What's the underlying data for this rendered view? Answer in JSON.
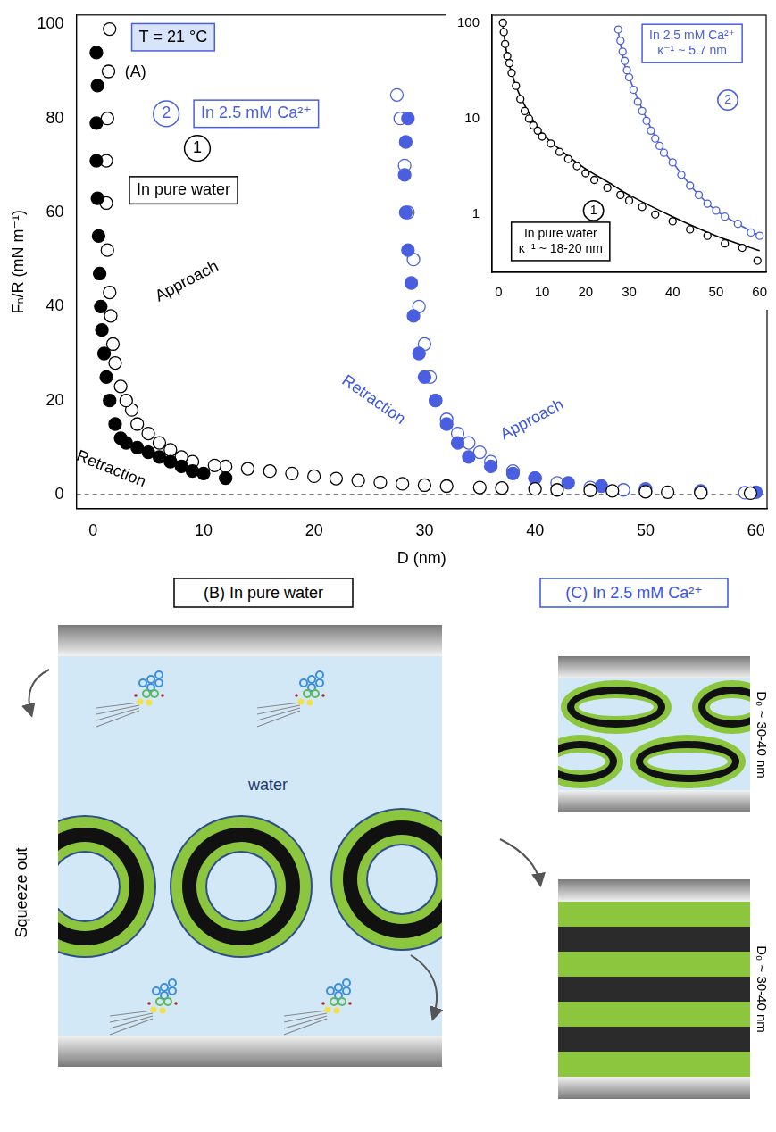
{
  "chart_data": [
    {
      "type": "scatter",
      "title": "(A)",
      "x_label": "D (nm)",
      "y_label": "Fₙ/R (mN m⁻¹)",
      "xlim": [
        -1.5,
        61
      ],
      "xticks": [
        0,
        10,
        20,
        30,
        40,
        50,
        60
      ],
      "ylim": [
        -3,
        102
      ],
      "yticks": [
        0,
        20,
        40,
        60,
        80,
        100
      ],
      "grid": false,
      "series": [
        {
          "color": "#000000",
          "marker": "filled_circle",
          "x": [
            0.3,
            0.4,
            0.3,
            0.3,
            0.4,
            0.5,
            0.6,
            0.7,
            0.8,
            1,
            1.2,
            1.5,
            2,
            2.5,
            3,
            4,
            5,
            6,
            7,
            8,
            9,
            10,
            12
          ],
          "values": [
            94,
            87,
            79,
            71,
            63,
            55,
            47,
            40,
            35,
            30,
            25,
            20,
            15,
            12,
            11,
            10,
            9,
            8,
            7,
            6,
            5,
            4.5,
            3.5
          ]
        },
        {
          "color": "#000000",
          "marker": "open_circle",
          "x": [
            59.5,
            55,
            52,
            50,
            47,
            45,
            42,
            40,
            37,
            35,
            32,
            30,
            28,
            26,
            24,
            22,
            20,
            18,
            16,
            14,
            12,
            11,
            9,
            8,
            7,
            6,
            5,
            4,
            3.5,
            3,
            2.5,
            2,
            1.8,
            1.6,
            1.5,
            1.3,
            1.2,
            1.2,
            1.3,
            1.4,
            1.5
          ],
          "values": [
            0.3,
            0.4,
            0.5,
            0.6,
            0.8,
            0.9,
            1,
            1.2,
            1.4,
            1.5,
            1.8,
            2,
            2.3,
            2.6,
            3,
            3.4,
            3.9,
            4.5,
            5,
            5.5,
            6,
            6.2,
            7,
            8,
            9.5,
            11,
            13,
            15,
            18,
            20,
            23,
            28,
            32,
            38,
            43,
            52,
            62,
            71,
            80,
            90,
            99
          ]
        },
        {
          "color": "#4a5fe0",
          "marker": "filled_circle",
          "x": [
            28.5,
            28.3,
            28.2,
            28.3,
            28.5,
            28.8,
            29,
            29.5,
            30,
            31,
            32,
            33,
            34,
            36,
            38,
            40,
            43,
            46,
            50,
            55,
            60
          ],
          "values": [
            80,
            75,
            68,
            60,
            52,
            45,
            38,
            30,
            25,
            20,
            15,
            11,
            8,
            6,
            4.5,
            3.5,
            2.5,
            1.8,
            1.2,
            0.8,
            0.5
          ]
        },
        {
          "color": "#4a5fe0",
          "marker": "open_circle",
          "x": [
            59,
            55,
            50,
            48,
            45,
            42,
            40,
            38,
            36,
            35,
            34,
            33,
            32,
            31,
            30.5,
            30,
            29.5,
            29,
            28.5,
            28.2,
            27.8,
            27.5
          ],
          "values": [
            0.4,
            0.5,
            0.7,
            1,
            1.5,
            2.5,
            3.5,
            5,
            7,
            9,
            11,
            13,
            16,
            20,
            25,
            32,
            40,
            50,
            60,
            70,
            80,
            85
          ]
        }
      ],
      "reference_lines": [
        {
          "y": 0,
          "line_style": "dashed",
          "color": "#000000"
        }
      ],
      "annotations": [
        {
          "text": "T = 21 °C",
          "color": "#000000"
        },
        {
          "text": "2",
          "color": "#4a5fe0"
        },
        {
          "text": "In 2.5 mM Ca²⁺",
          "color": "#4a5fe0"
        },
        {
          "text": "1",
          "color": "#000000"
        },
        {
          "text": "In pure water",
          "color": "#000000"
        },
        {
          "text": "Approach",
          "color": "#000000"
        },
        {
          "text": "Retraction",
          "color": "#000000"
        },
        {
          "text": "Retraction",
          "color": "#3a55e0"
        },
        {
          "text": "Approach",
          "color": "#3a55e0"
        }
      ]
    },
    {
      "type": "scatter",
      "log": "y",
      "xlim": [
        -1.5,
        61.5
      ],
      "xticks": [
        0,
        10,
        20,
        30,
        40,
        50,
        60
      ],
      "ylim": [
        0.25,
        120
      ],
      "yticks": [
        1,
        10,
        100
      ],
      "grid": false,
      "series": [
        {
          "color": "#000000",
          "marker": "open_circle",
          "x": [
            1,
            1.2,
            1.5,
            2,
            2.5,
            3,
            4,
            5,
            6,
            7,
            8,
            9,
            10,
            12,
            14,
            16,
            18,
            20,
            22,
            25,
            28,
            30,
            33,
            36,
            40,
            44,
            48,
            52,
            56,
            59.5
          ],
          "values": [
            100,
            80,
            60,
            45,
            38,
            30,
            22,
            16,
            12,
            10,
            8.5,
            7.5,
            6.5,
            5.5,
            4.5,
            3.8,
            3.2,
            2.7,
            2.3,
            1.9,
            1.6,
            1.4,
            1.2,
            1,
            0.85,
            0.7,
            0.6,
            0.5,
            0.45,
            0.33
          ]
        },
        {
          "type": "line",
          "line_style": "solid",
          "marker": "none",
          "color": "#000000",
          "x": [
            1,
            2,
            3,
            5,
            8,
            10,
            15,
            20,
            25,
            30,
            40,
            50,
            60
          ],
          "values": [
            90,
            45,
            30,
            17,
            9.5,
            7,
            4.4,
            3,
            2.2,
            1.6,
            0.95,
            0.6,
            0.42
          ]
        },
        {
          "color": "#4a5fe0",
          "marker": "open_circle",
          "x": [
            27.5,
            28,
            28.5,
            29,
            29.5,
            30,
            31,
            32,
            33,
            34,
            35,
            36,
            37,
            38,
            40,
            42,
            44,
            46,
            48,
            50,
            52,
            55,
            58,
            60
          ],
          "values": [
            85,
            65,
            50,
            40,
            32,
            27,
            20,
            15,
            12,
            9.5,
            7.5,
            6.2,
            5.2,
            4.4,
            3.5,
            2.6,
            2,
            1.6,
            1.3,
            1.1,
            0.95,
            0.8,
            0.65,
            0.6
          ]
        },
        {
          "type": "line",
          "line_style": "solid",
          "marker": "none",
          "color": "#4a5fe0",
          "x": [
            27.5,
            29,
            30,
            32,
            35,
            38,
            40,
            45,
            50,
            55,
            60
          ],
          "values": [
            80,
            36,
            27,
            16,
            8,
            4.5,
            3.5,
            1.8,
            1.1,
            0.8,
            0.6
          ]
        }
      ],
      "annotations": [
        {
          "text": "2",
          "color": "#4a5fe0"
        },
        {
          "text": "In 2.5 mM Ca²⁺",
          "color": "#4a5fe0"
        },
        {
          "text": "κ⁻¹ ~ 5.7 nm",
          "color": "#4a5fe0"
        },
        {
          "text": "1",
          "color": "#000000"
        },
        {
          "text": "In pure water",
          "color": "#000000"
        },
        {
          "text": "κ⁻¹ ~ 18-20 nm",
          "color": "#000000"
        }
      ]
    }
  ],
  "diagrams": {
    "B": {
      "title": "(B) In pure water",
      "medium": "water",
      "flow": "Squeeze out"
    },
    "C": {
      "title": "(C) In 2.5 mM Ca²⁺",
      "gap_top": "D₀ ~ 30-40 nm",
      "gap_bottom": "D₀ ~ 30-40 nm"
    }
  }
}
